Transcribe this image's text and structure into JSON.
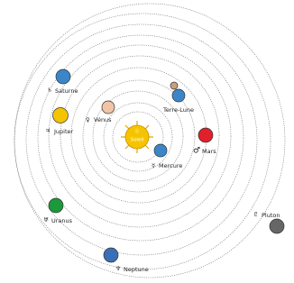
{
  "nodes": [
    {
      "label": "Soleil",
      "symbol": "☉"
    },
    {
      "label": "Mercure",
      "symbol": "☿"
    },
    {
      "label": "Vénus",
      "symbol": "♀"
    },
    {
      "label": "Terre-Lune",
      "symbol": ""
    },
    {
      "label": "Mars",
      "symbol": "♂"
    },
    {
      "label": "Jupiter",
      "symbol": "♃"
    },
    {
      "label": "Saturne",
      "symbol": "♄"
    },
    {
      "label": "Uranus",
      "symbol": "♅"
    },
    {
      "label": "Neptune",
      "symbol": "♆"
    },
    {
      "label": "Pluton",
      "symbol": "♇"
    }
  ]
}
